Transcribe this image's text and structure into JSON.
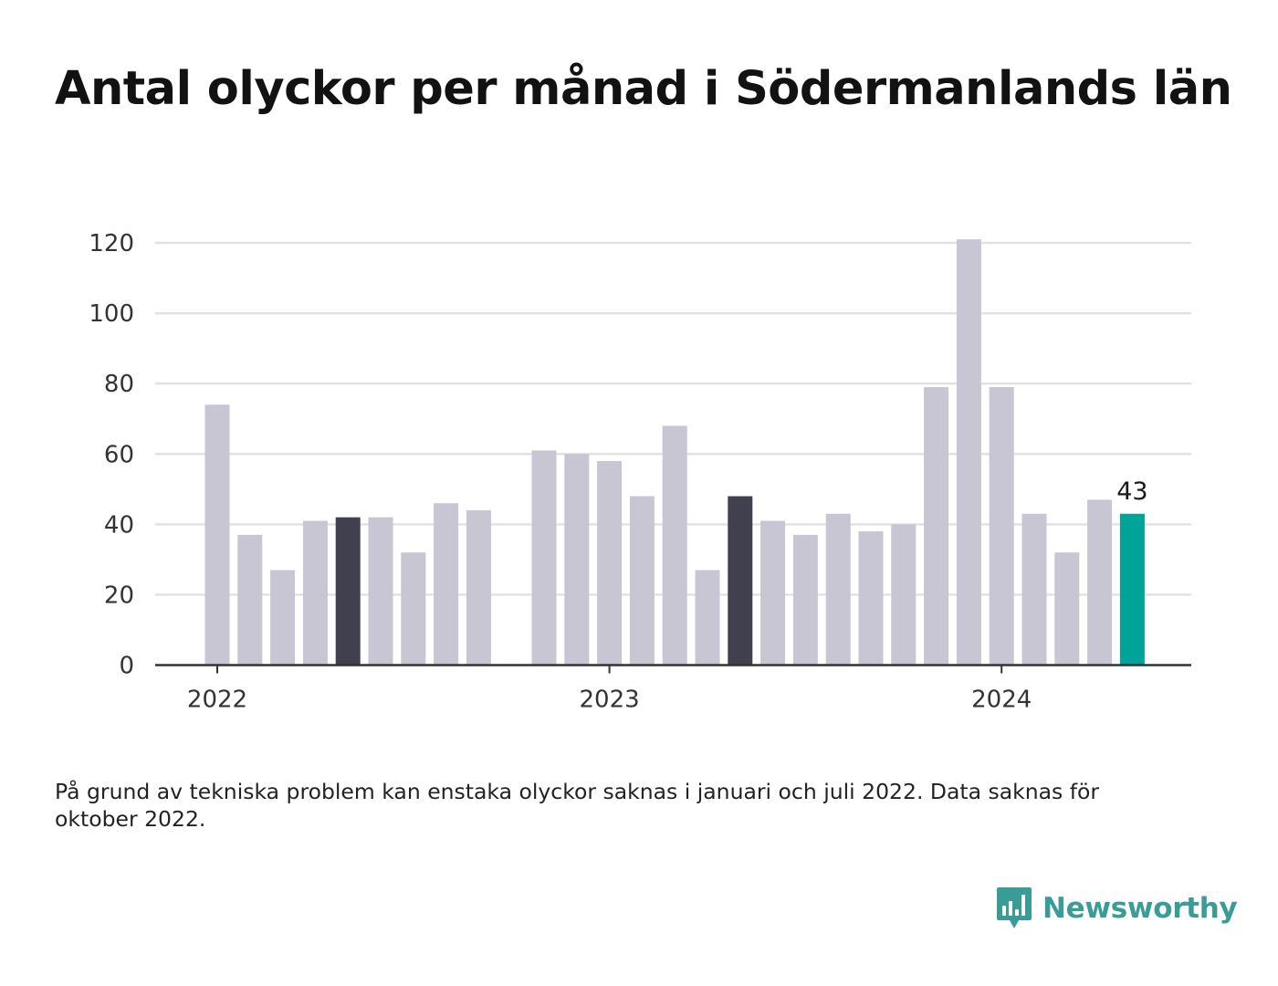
{
  "title": "Antal olyckor per månad i Södermanlands län",
  "footnote": "På grund av tekniska problem kan enstaka olyckor saknas i januari och juli 2022. Data saknas för oktober 2022.",
  "brand": {
    "name": "Newsworthy",
    "color": "#3a9c97"
  },
  "colors": {
    "default": "#c8c6d2",
    "highlight": "#41404e",
    "latest": "#00a398",
    "grid": "#e2e2e2",
    "axis": "#333333"
  },
  "chart_data": {
    "type": "bar",
    "title": "Antal olyckor per månad i Södermanlands län",
    "xlabel": "",
    "ylabel": "",
    "ylim": [
      0,
      120
    ],
    "yticks": [
      0,
      20,
      40,
      60,
      80,
      100,
      120
    ],
    "grid": true,
    "year_labels": [
      {
        "label": "2022",
        "month_index": 0
      },
      {
        "label": "2023",
        "month_index": 12
      },
      {
        "label": "2024",
        "month_index": 24
      }
    ],
    "months": [
      "2022-01",
      "2022-02",
      "2022-03",
      "2022-04",
      "2022-05",
      "2022-06",
      "2022-07",
      "2022-08",
      "2022-09",
      "2022-10",
      "2022-11",
      "2022-12",
      "2023-01",
      "2023-02",
      "2023-03",
      "2023-04",
      "2023-05",
      "2023-06",
      "2023-07",
      "2023-08",
      "2023-09",
      "2023-10",
      "2023-11",
      "2023-12",
      "2024-01",
      "2024-02",
      "2024-03",
      "2024-04",
      "2024-05"
    ],
    "values": [
      74,
      37,
      27,
      41,
      42,
      42,
      32,
      46,
      44,
      null,
      61,
      60,
      58,
      48,
      68,
      27,
      48,
      41,
      37,
      43,
      38,
      40,
      79,
      121,
      79,
      43,
      32,
      47,
      43
    ],
    "highlighted_months": [
      "2022-05",
      "2023-05"
    ],
    "latest_month": "2024-05",
    "data_labels": [
      {
        "month": "2024-05",
        "text": "43"
      }
    ]
  }
}
